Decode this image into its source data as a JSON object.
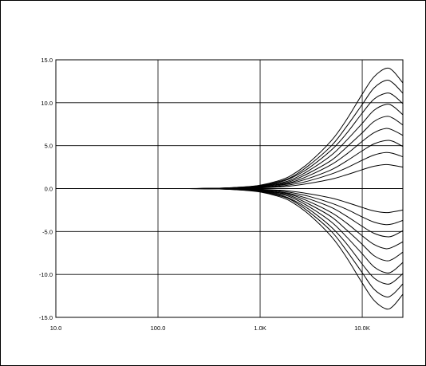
{
  "chart_data": {
    "type": "line",
    "title": "",
    "xlabel": "",
    "ylabel": "",
    "x_scale": "log",
    "xlim": [
      10,
      25000
    ],
    "ylim": [
      -15,
      15
    ],
    "grid": true,
    "legend": "none",
    "x_ticks": [
      {
        "value": 10,
        "label": "10.0"
      },
      {
        "value": 100,
        "label": "100.0"
      },
      {
        "value": 1000,
        "label": "1.0K"
      },
      {
        "value": 10000,
        "label": "10.0K"
      }
    ],
    "y_ticks": [
      {
        "value": 15,
        "label": "15.0"
      },
      {
        "value": 10,
        "label": "10.0"
      },
      {
        "value": 5,
        "label": "5.0"
      },
      {
        "value": 0,
        "label": "0.0"
      },
      {
        "value": -5,
        "label": "-5.0"
      },
      {
        "value": -10,
        "label": "-10.0"
      },
      {
        "value": -15,
        "label": "-15.0"
      }
    ],
    "x": [
      10,
      100,
      200,
      400,
      700,
      1000,
      1500,
      2000,
      3000,
      5000,
      7000,
      10000,
      13000,
      17000,
      20000,
      25000
    ],
    "series": [
      {
        "values": [
          0,
          0,
          0,
          0.05,
          0.2,
          0.4,
          0.9,
          1.5,
          3.0,
          5.6,
          8.0,
          11.0,
          13.0,
          14.0,
          13.7,
          12.3
        ]
      },
      {
        "values": [
          0,
          0,
          0,
          0.05,
          0.18,
          0.36,
          0.8,
          1.3,
          2.7,
          5.0,
          7.2,
          9.8,
          11.7,
          12.6,
          12.3,
          11.1
        ]
      },
      {
        "values": [
          0,
          0,
          0,
          0.04,
          0.16,
          0.32,
          0.7,
          1.2,
          2.4,
          4.5,
          6.4,
          8.8,
          10.4,
          11.1,
          10.9,
          9.9
        ]
      },
      {
        "values": [
          0,
          0,
          0,
          0.04,
          0.14,
          0.28,
          0.6,
          1.0,
          2.1,
          3.9,
          5.6,
          7.6,
          9.1,
          9.8,
          9.6,
          8.6
        ]
      },
      {
        "values": [
          0,
          0,
          0,
          0.03,
          0.12,
          0.24,
          0.5,
          0.85,
          1.8,
          3.3,
          4.8,
          6.5,
          7.8,
          8.4,
          8.2,
          7.4
        ]
      },
      {
        "values": [
          0,
          0,
          0,
          0.02,
          0.1,
          0.2,
          0.45,
          0.7,
          1.5,
          2.8,
          4.0,
          5.5,
          6.5,
          7.0,
          6.8,
          6.2
        ]
      },
      {
        "values": [
          0,
          0,
          0,
          0.02,
          0.08,
          0.16,
          0.35,
          0.6,
          1.2,
          2.2,
          3.2,
          4.4,
          5.2,
          5.6,
          5.5,
          4.9
        ]
      },
      {
        "values": [
          0,
          0,
          0,
          0.01,
          0.06,
          0.12,
          0.25,
          0.45,
          0.9,
          1.7,
          2.4,
          3.3,
          3.9,
          4.2,
          4.1,
          3.7
        ]
      },
      {
        "values": [
          0,
          0,
          0,
          0.01,
          0.04,
          0.08,
          0.18,
          0.3,
          0.6,
          1.1,
          1.6,
          2.2,
          2.6,
          2.8,
          2.7,
          2.5
        ]
      },
      {
        "values": [
          0,
          0,
          0,
          0,
          0,
          0,
          0,
          0,
          0,
          0,
          0,
          0,
          0,
          0,
          0,
          0
        ]
      },
      {
        "values": [
          0,
          0,
          0,
          -0.01,
          -0.04,
          -0.08,
          -0.18,
          -0.3,
          -0.6,
          -1.1,
          -1.6,
          -2.2,
          -2.6,
          -2.8,
          -2.7,
          -2.5
        ]
      },
      {
        "values": [
          0,
          0,
          0,
          -0.01,
          -0.06,
          -0.12,
          -0.25,
          -0.45,
          -0.9,
          -1.7,
          -2.4,
          -3.3,
          -3.9,
          -4.2,
          -4.1,
          -3.7
        ]
      },
      {
        "values": [
          0,
          0,
          0,
          -0.02,
          -0.08,
          -0.16,
          -0.35,
          -0.6,
          -1.2,
          -2.2,
          -3.2,
          -4.4,
          -5.2,
          -5.6,
          -5.5,
          -4.9
        ]
      },
      {
        "values": [
          0,
          0,
          0,
          -0.02,
          -0.1,
          -0.2,
          -0.45,
          -0.7,
          -1.5,
          -2.8,
          -4.0,
          -5.5,
          -6.5,
          -7.0,
          -6.8,
          -6.2
        ]
      },
      {
        "values": [
          0,
          0,
          0,
          -0.03,
          -0.12,
          -0.24,
          -0.5,
          -0.85,
          -1.8,
          -3.3,
          -4.8,
          -6.5,
          -7.8,
          -8.4,
          -8.2,
          -7.4
        ]
      },
      {
        "values": [
          0,
          0,
          0,
          -0.04,
          -0.14,
          -0.28,
          -0.6,
          -1.0,
          -2.1,
          -3.9,
          -5.6,
          -7.6,
          -9.1,
          -9.8,
          -9.6,
          -8.6
        ]
      },
      {
        "values": [
          0,
          0,
          0,
          -0.04,
          -0.16,
          -0.32,
          -0.7,
          -1.2,
          -2.4,
          -4.5,
          -6.4,
          -8.8,
          -10.4,
          -11.1,
          -10.9,
          -9.9
        ]
      },
      {
        "values": [
          0,
          0,
          0,
          -0.05,
          -0.18,
          -0.36,
          -0.8,
          -1.3,
          -2.7,
          -5.0,
          -7.2,
          -9.8,
          -11.7,
          -12.6,
          -12.3,
          -11.1
        ]
      },
      {
        "values": [
          0,
          0,
          0,
          -0.05,
          -0.2,
          -0.4,
          -0.9,
          -1.5,
          -3.0,
          -5.6,
          -8.0,
          -11.0,
          -13.0,
          -14.0,
          -13.7,
          -12.3
        ]
      }
    ],
    "colors": {
      "line": "#000000",
      "grid": "#000000",
      "background": "#ffffff"
    }
  }
}
